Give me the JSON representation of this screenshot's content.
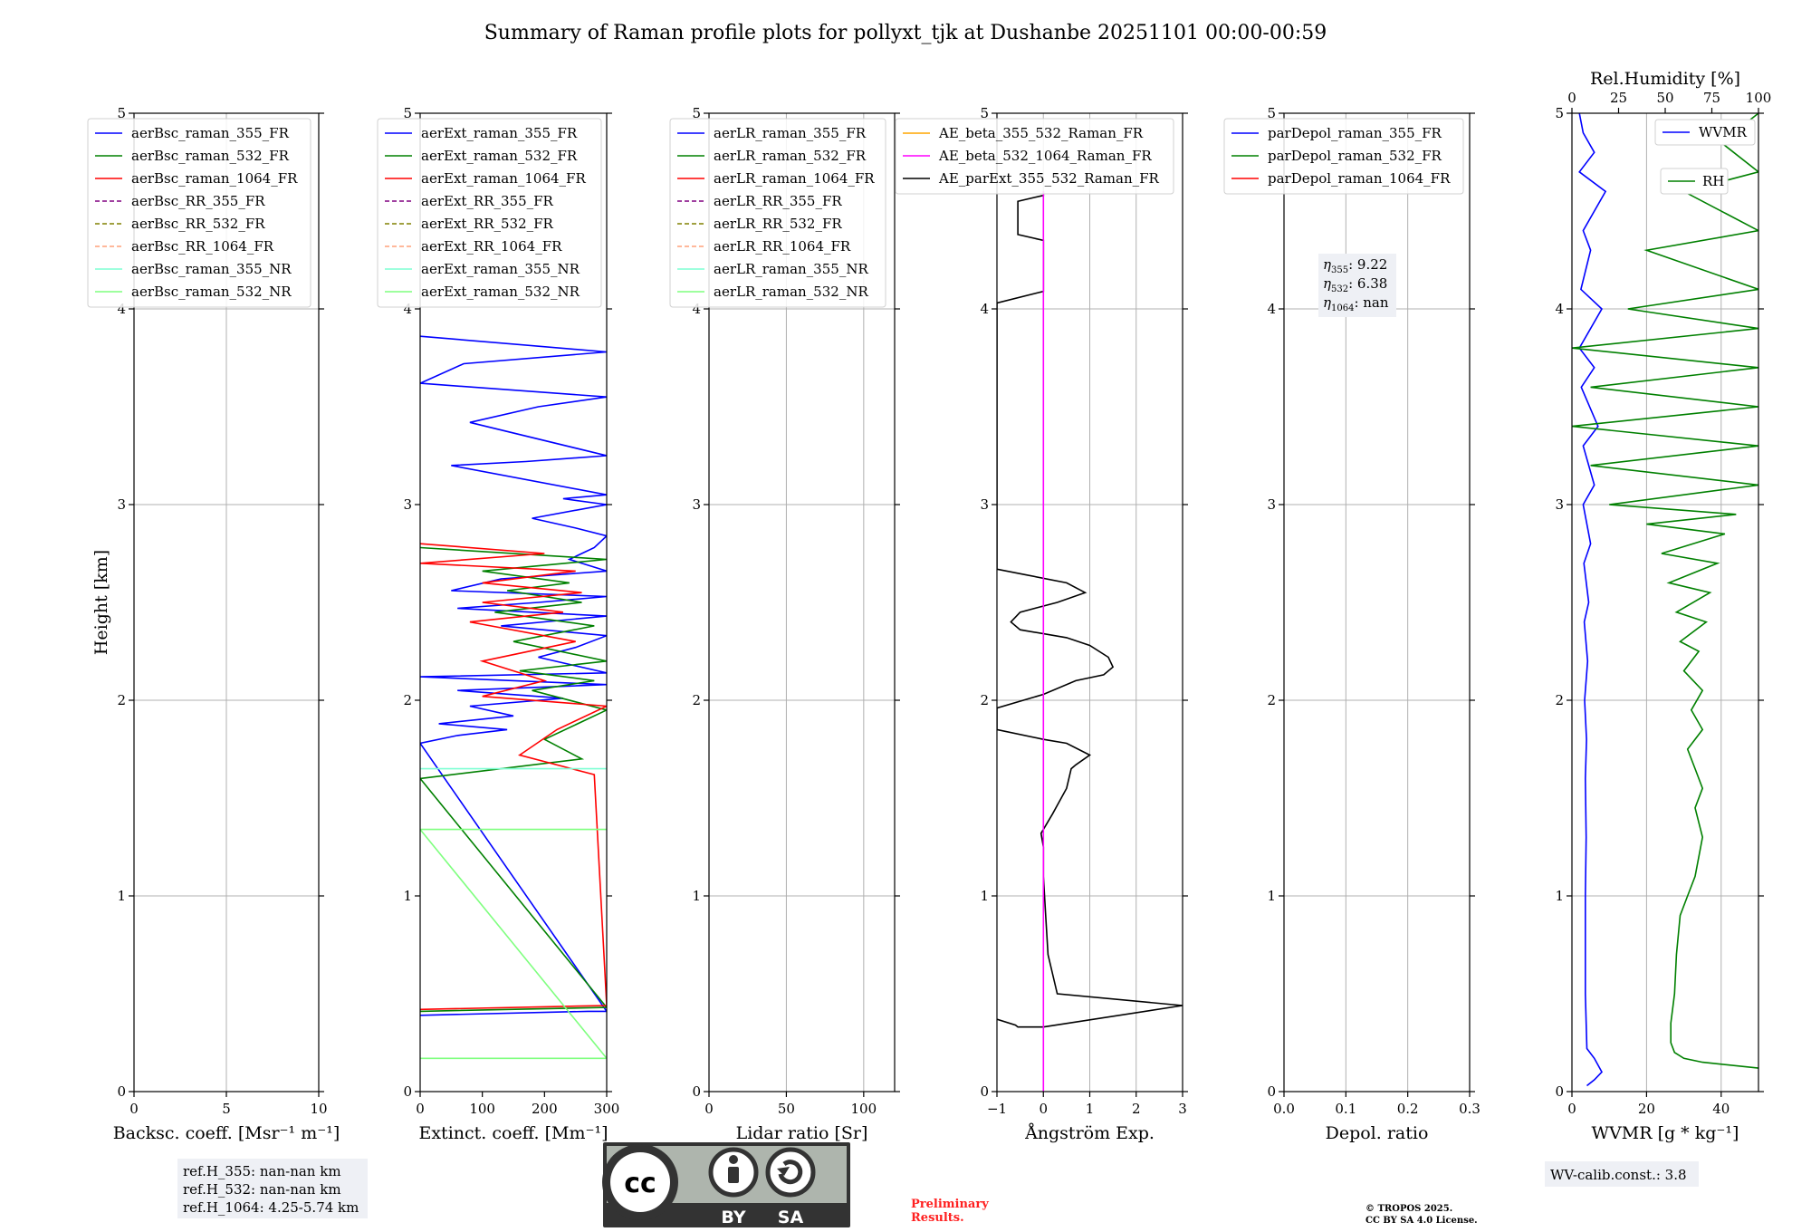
{
  "chart_data": [
    {
      "type": "line",
      "title": "Summary of Raman profile plots for pollyxt_tjk at Dushanbe 20251101 00:00-00:59",
      "panel": "backscatter",
      "xlabel": "Backsc. coeff. [Msr⁻¹ m⁻¹]",
      "ylabel": "Height [km]",
      "xlim": [
        0,
        10
      ],
      "ylim": [
        0,
        5
      ],
      "xticks": [
        "0",
        "5",
        "10"
      ],
      "yticks": [
        "0",
        "1",
        "2",
        "3",
        "4",
        "5"
      ],
      "grid": true,
      "legend_position": "top",
      "legend": [
        {
          "label": "aerBsc_raman_355_FR",
          "color": "#0000ff",
          "dash": false
        },
        {
          "label": "aerBsc_raman_532_FR",
          "color": "#008000",
          "dash": false
        },
        {
          "label": "aerBsc_raman_1064_FR",
          "color": "#ff0000",
          "dash": false
        },
        {
          "label": "aerBsc_RR_355_FR",
          "color": "#800080",
          "dash": true
        },
        {
          "label": "aerBsc_RR_532_FR",
          "color": "#808000",
          "dash": true
        },
        {
          "label": "aerBsc_RR_1064_FR",
          "color": "#ffa07a",
          "dash": true
        },
        {
          "label": "aerBsc_raman_355_NR",
          "color": "#7fffd4",
          "dash": false
        },
        {
          "label": "aerBsc_raman_532_NR",
          "color": "#7fff7f",
          "dash": false
        }
      ],
      "series": []
    },
    {
      "type": "line",
      "panel": "extinction",
      "xlabel": "Extinct. coeff. [Mm⁻¹]",
      "xlim": [
        0,
        300
      ],
      "ylim": [
        0,
        5
      ],
      "xticks": [
        "0",
        "100",
        "200",
        "300"
      ],
      "yticks": [
        "0",
        "1",
        "2",
        "3",
        "4",
        "5"
      ],
      "grid": false,
      "legend_position": "top",
      "legend": [
        {
          "label": "aerExt_raman_355_FR",
          "color": "#0000ff",
          "dash": false
        },
        {
          "label": "aerExt_raman_532_FR",
          "color": "#008000",
          "dash": false
        },
        {
          "label": "aerExt_raman_1064_FR",
          "color": "#ff0000",
          "dash": false
        },
        {
          "label": "aerExt_RR_355_FR",
          "color": "#800080",
          "dash": true
        },
        {
          "label": "aerExt_RR_532_FR",
          "color": "#808000",
          "dash": true
        },
        {
          "label": "aerExt_RR_1064_FR",
          "color": "#ffa07a",
          "dash": true
        },
        {
          "label": "aerExt_raman_355_NR",
          "color": "#7fffd4",
          "dash": false
        },
        {
          "label": "aerExt_raman_532_NR",
          "color": "#7fff7f",
          "dash": false
        }
      ],
      "series": [
        {
          "name": "aerExt_raman_355_FR",
          "color": "#0000ff",
          "x": [
            0,
            270,
            300,
            0,
            60,
            140,
            30,
            150,
            80,
            230,
            60,
            300,
            0,
            300,
            190,
            250,
            300,
            130,
            300,
            60,
            190,
            300,
            50,
            130,
            300,
            240,
            280,
            300,
            250,
            180,
            300,
            230,
            300,
            50,
            170,
            300,
            80,
            190,
            300,
            0,
            70,
            300,
            0
          ],
          "y": [
            0.39,
            0.41,
            0.41,
            1.78,
            1.82,
            1.85,
            1.88,
            1.92,
            1.97,
            2.01,
            2.05,
            2.08,
            2.12,
            2.14,
            2.22,
            2.27,
            2.33,
            2.38,
            2.43,
            2.47,
            2.5,
            2.53,
            2.56,
            2.62,
            2.66,
            2.72,
            2.78,
            2.84,
            2.88,
            2.93,
            3.0,
            3.03,
            3.05,
            3.2,
            3.22,
            3.25,
            3.42,
            3.5,
            3.55,
            3.62,
            3.72,
            3.78,
            3.86
          ]
        },
        {
          "name": "aerExt_raman_532_FR",
          "color": "#008000",
          "x": [
            0,
            300,
            0,
            260,
            200,
            300,
            180,
            280,
            160,
            300,
            150,
            280,
            120,
            260,
            140,
            240,
            100,
            300,
            0
          ],
          "y": [
            0.41,
            0.43,
            1.6,
            1.7,
            1.8,
            1.95,
            2.05,
            2.1,
            2.15,
            2.2,
            2.3,
            2.38,
            2.45,
            2.5,
            2.56,
            2.6,
            2.66,
            2.72,
            2.78
          ]
        },
        {
          "name": "aerExt_raman_1064_FR",
          "color": "#ff0000",
          "x": [
            0,
            300,
            280,
            160,
            220,
            300,
            100,
            200,
            100,
            250,
            80,
            230,
            100,
            260,
            100,
            250,
            0,
            200,
            0
          ],
          "y": [
            0.42,
            0.44,
            1.62,
            1.72,
            1.85,
            1.97,
            2.02,
            2.1,
            2.2,
            2.3,
            2.4,
            2.45,
            2.5,
            2.55,
            2.6,
            2.66,
            2.7,
            2.75,
            2.8
          ]
        },
        {
          "name": "aerExt_raman_355_NR",
          "color": "#7fffd4",
          "x": [
            0,
            300
          ],
          "y": [
            1.65,
            1.65
          ]
        },
        {
          "name": "aerExt_raman_532_NR",
          "color": "#7fff7f",
          "x": [
            0,
            300,
            0,
            300
          ],
          "y": [
            0.17,
            0.17,
            1.34,
            1.34
          ]
        }
      ]
    },
    {
      "type": "line",
      "panel": "lidar_ratio",
      "xlabel": "Lidar ratio [Sr]",
      "xlim": [
        0,
        120
      ],
      "ylim": [
        0,
        5
      ],
      "xticks": [
        "0",
        "50",
        "100"
      ],
      "yticks": [
        "0",
        "1",
        "2",
        "3",
        "4",
        "5"
      ],
      "grid": true,
      "legend_position": "top",
      "legend": [
        {
          "label": "aerLR_raman_355_FR",
          "color": "#0000ff",
          "dash": false
        },
        {
          "label": "aerLR_raman_532_FR",
          "color": "#008000",
          "dash": false
        },
        {
          "label": "aerLR_raman_1064_FR",
          "color": "#ff0000",
          "dash": false
        },
        {
          "label": "aerLR_RR_355_FR",
          "color": "#800080",
          "dash": true
        },
        {
          "label": "aerLR_RR_532_FR",
          "color": "#808000",
          "dash": true
        },
        {
          "label": "aerLR_RR_1064_FR",
          "color": "#ffa07a",
          "dash": true
        },
        {
          "label": "aerLR_raman_355_NR",
          "color": "#7fffd4",
          "dash": false
        },
        {
          "label": "aerLR_raman_532_NR",
          "color": "#7fff7f",
          "dash": false
        }
      ],
      "series": []
    },
    {
      "type": "line",
      "panel": "angstrom",
      "xlabel": "Ångström Exp.",
      "xlim": [
        -1,
        3
      ],
      "ylim": [
        0,
        5
      ],
      "xticks": [
        "−1",
        "0",
        "1",
        "2",
        "3"
      ],
      "yticks": [
        "0",
        "1",
        "2",
        "3",
        "4",
        "5"
      ],
      "grid": true,
      "legend_position": "top",
      "legend": [
        {
          "label": "AE_beta_355_532_Raman_FR",
          "color": "#ffa500",
          "dash": false
        },
        {
          "label": "AE_beta_532_1064_Raman_FR",
          "color": "#ff00ff",
          "dash": false
        },
        {
          "label": "AE_parExt_355_532_Raman_FR",
          "color": "#000000",
          "dash": false
        }
      ],
      "series": [
        {
          "name": "AE_parExt_355_532_Raman_FR",
          "color": "#000000",
          "x": [
            -1,
            -0.6,
            -0.55,
            0,
            3,
            0.3,
            0.1,
            0.05,
            0,
            0,
            -0.05,
            0,
            0.2,
            0.5,
            0.6,
            0.7,
            1.0,
            0.5,
            0,
            -1,
            -1,
            0,
            0.7,
            1.3,
            1.5,
            1.4,
            1.0,
            0.5,
            -0.5,
            -0.7,
            -0.5,
            0.3,
            0.9,
            0.5,
            -1,
            -1,
            0,
            0,
            -0.55,
            -0.55,
            0,
            0
          ],
          "y": [
            0.37,
            0.34,
            0.33,
            0.33,
            0.44,
            0.5,
            0.7,
            0.9,
            1.1,
            1.25,
            1.32,
            1.34,
            1.42,
            1.55,
            1.65,
            1.67,
            1.72,
            1.78,
            1.8,
            1.85,
            1.96,
            2.03,
            2.1,
            2.13,
            2.17,
            2.22,
            2.28,
            2.32,
            2.36,
            2.4,
            2.45,
            2.5,
            2.55,
            2.6,
            2.67,
            4.03,
            4.09,
            4.35,
            4.38,
            4.55,
            4.58,
            4.6
          ]
        },
        {
          "name": "AE_beta_532_1064_Raman_FR",
          "color": "#ff00ff",
          "x": [
            0,
            0
          ],
          "y": [
            0,
            4.6
          ]
        }
      ]
    },
    {
      "type": "line",
      "panel": "depol",
      "xlabel": "Depol. ratio",
      "xlim": [
        0,
        0.3
      ],
      "ylim": [
        0,
        5
      ],
      "xticks": [
        "0.0",
        "0.1",
        "0.2",
        "0.3"
      ],
      "yticks": [
        "0",
        "1",
        "2",
        "3",
        "4",
        "5"
      ],
      "grid": true,
      "legend_position": "top",
      "legend": [
        {
          "label": "parDepol_raman_355_FR",
          "color": "#0000ff",
          "dash": false
        },
        {
          "label": "parDepol_raman_532_FR",
          "color": "#008000",
          "dash": false
        },
        {
          "label": "parDepol_raman_1064_FR",
          "color": "#ff0000",
          "dash": false
        }
      ],
      "eta": [
        {
          "sub": "355",
          "value": "9.22"
        },
        {
          "sub": "532",
          "value": "6.38"
        },
        {
          "sub": "1064",
          "value": "nan"
        }
      ],
      "series": []
    },
    {
      "type": "line",
      "panel": "water_vapor",
      "xlabel": "WVMR",
      "xlabel_unit": "g * kg⁻¹",
      "xlim": [
        0,
        50
      ],
      "ylim": [
        0,
        5
      ],
      "xticks": [
        "0",
        "20",
        "40"
      ],
      "x2label": "Rel.Humidity [%]",
      "x2lim": [
        0,
        100
      ],
      "x2ticks": [
        "0",
        "25",
        "50",
        "75",
        "100"
      ],
      "yticks": [
        "0",
        "1",
        "2",
        "3",
        "4",
        "5"
      ],
      "grid": true,
      "legend": [
        {
          "label": "WVMR",
          "color": "#0000ff"
        },
        {
          "label": "RH",
          "color": "#008000"
        }
      ],
      "calibration": "WV-calib.const.: 3.8",
      "series": [
        {
          "name": "WVMR",
          "axis": "bottom",
          "color": "#0000ff",
          "x": [
            4,
            6,
            8,
            6,
            4,
            3.6,
            3.6,
            3.8,
            3.6,
            3.9,
            3.4,
            4.2,
            3.3,
            4.5,
            3.2,
            5,
            3,
            6,
            3,
            7,
            2.5,
            6,
            2,
            8,
            2.4,
            5,
            3,
            9,
            2,
            6,
            3,
            2
          ],
          "y": [
            0.03,
            0.06,
            0.1,
            0.17,
            0.22,
            0.5,
            1.0,
            1.3,
            1.6,
            1.8,
            2.0,
            2.2,
            2.4,
            2.5,
            2.7,
            2.8,
            3.0,
            3.1,
            3.3,
            3.4,
            3.6,
            3.7,
            3.8,
            4.0,
            4.1,
            4.3,
            4.4,
            4.6,
            4.7,
            4.8,
            4.9,
            5.0
          ]
        },
        {
          "name": "RH",
          "axis": "top",
          "color": "#008000",
          "x": [
            100,
            70,
            60,
            55,
            53,
            53,
            55,
            56,
            58,
            62,
            66,
            68,
            70,
            66,
            70,
            66,
            62,
            70,
            64,
            70,
            60,
            68,
            58,
            72,
            56,
            74,
            52,
            78,
            48,
            82,
            40,
            88,
            20,
            100,
            10,
            100,
            0,
            100,
            10,
            100,
            0,
            100,
            30,
            100,
            40,
            100,
            60,
            100,
            80,
            100
          ],
          "y": [
            0.12,
            0.15,
            0.17,
            0.2,
            0.25,
            0.35,
            0.5,
            0.7,
            0.9,
            1.0,
            1.1,
            1.2,
            1.3,
            1.45,
            1.55,
            1.65,
            1.75,
            1.85,
            1.95,
            2.05,
            2.15,
            2.25,
            2.3,
            2.4,
            2.45,
            2.55,
            2.6,
            2.7,
            2.75,
            2.85,
            2.9,
            2.95,
            3.0,
            3.1,
            3.2,
            3.3,
            3.4,
            3.5,
            3.6,
            3.7,
            3.8,
            3.9,
            4.0,
            4.1,
            4.3,
            4.4,
            4.6,
            4.7,
            4.85,
            5.0
          ]
        }
      ]
    }
  ],
  "page": {
    "title": "Summary of Raman profile plots for pollyxt_tjk at Dushanbe 20251101 00:00-00:59",
    "ref_heights": [
      "ref.H_355: nan-nan km",
      "ref.H_532: nan-nan km",
      "ref.H_1064: 4.25-5.74 km"
    ],
    "license_badge": {
      "cc": "cc",
      "by": "BY",
      "sa": "SA"
    },
    "preliminary": [
      "Preliminary",
      "Results."
    ],
    "copyright": [
      "© TROPOS 2025.",
      "CC BY SA 4.0 License."
    ],
    "colors": {
      "grid": "#b0b0b0",
      "note_bg": "#eef0f5",
      "preliminary": "#ff2020",
      "badge_dark": "#333333",
      "badge_light": "#aeb5ad"
    }
  }
}
